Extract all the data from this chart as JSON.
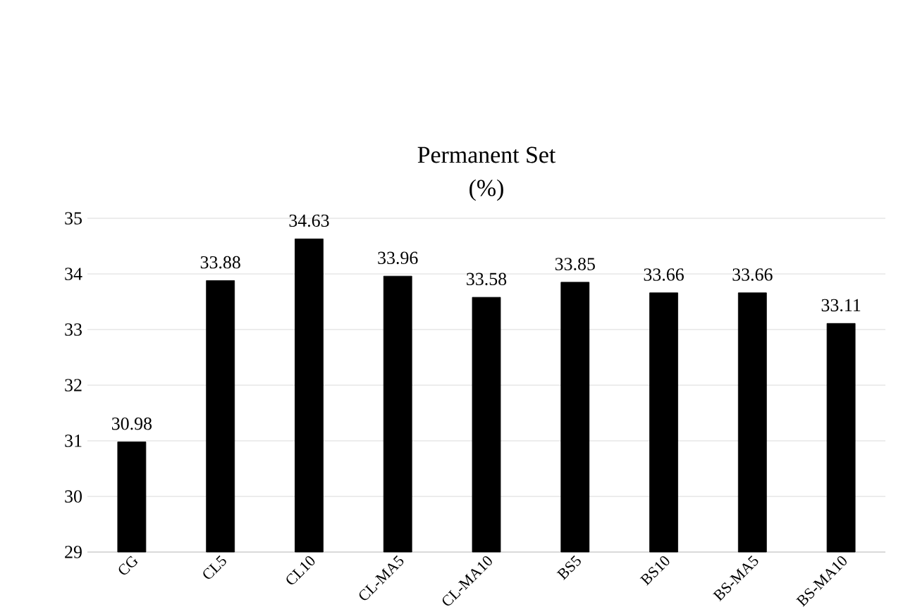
{
  "chart_data": {
    "type": "bar",
    "title": "Permanent Set",
    "subtitle": "(%)",
    "categories": [
      "CG",
      "CL5",
      "CL10",
      "CL-MA5",
      "CL-MA10",
      "BS5",
      "BS10",
      "BS-MA5",
      "BS-MA10"
    ],
    "values": [
      30.98,
      33.88,
      34.63,
      33.96,
      33.58,
      33.85,
      33.66,
      33.66,
      33.11
    ],
    "color": "#000000",
    "ylim": [
      29,
      35
    ],
    "yticks": [
      29,
      30,
      31,
      32,
      33,
      34,
      35
    ],
    "grid": "y",
    "data_labels": true
  }
}
